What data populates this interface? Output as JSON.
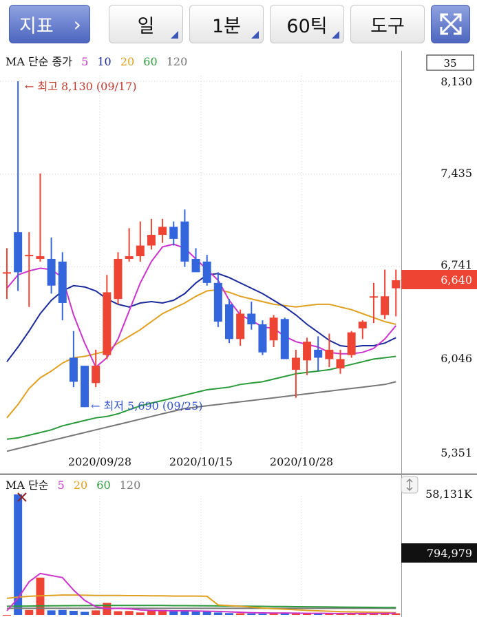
{
  "toolbar": {
    "indicator_label": "지표",
    "chevron": "›",
    "period_label": "일",
    "interval_label": "1분",
    "tick_label": "60틱",
    "tools_label": "도구",
    "fullscreen_icon": "expand-arrows-icon"
  },
  "price_panel": {
    "legend_prefix": "MA 단순 종가",
    "legend_periods": [
      "5",
      "10",
      "20",
      "60",
      "120"
    ],
    "legend_colors": [
      "#cc33cc",
      "#1a2a9a",
      "#e0a020",
      "#2a9a3a",
      "#777777"
    ],
    "count_box": "35",
    "y_ticks": [
      "8,130",
      "7,435",
      "6,741",
      "6,046",
      "5,351"
    ],
    "current_price_label": "6,640",
    "high_annotation": "← 최고 8,130 (09/17)",
    "low_annotation": "← 최저 5,690 (09/25)",
    "x_ticks": [
      "2020/09/28",
      "2020/10/15",
      "2020/10/28"
    ],
    "up_color": "#ee4433",
    "down_color": "#3366dd"
  },
  "volume_panel": {
    "legend_prefix": "MA 단순",
    "legend_periods": [
      "5",
      "20",
      "60",
      "120"
    ],
    "legend_colors": [
      "#cc33cc",
      "#e0a020",
      "#2a9a3a",
      "#777777"
    ],
    "y_top_label": "58,131K",
    "current_volume_label": "794,979"
  },
  "chart_data": {
    "type": "candlestick",
    "y_range": [
      5351,
      8130
    ],
    "high": 8130,
    "low": 5690,
    "last_price": 6640,
    "candles": [
      {
        "o": 6700,
        "h": 6880,
        "l": 6500,
        "c": 6700
      },
      {
        "o": 7000,
        "h": 8130,
        "l": 6560,
        "c": 6700
      },
      {
        "o": 6820,
        "h": 7000,
        "l": 6440,
        "c": 6830
      },
      {
        "o": 6800,
        "h": 7440,
        "l": 6780,
        "c": 6820
      },
      {
        "o": 6800,
        "h": 6960,
        "l": 6540,
        "c": 6600
      },
      {
        "o": 6780,
        "h": 6850,
        "l": 6340,
        "c": 6470
      },
      {
        "o": 6060,
        "h": 6260,
        "l": 5840,
        "c": 5880
      },
      {
        "o": 6000,
        "h": 6000,
        "l": 5690,
        "c": 5690
      },
      {
        "o": 5870,
        "h": 6120,
        "l": 5840,
        "c": 6000
      },
      {
        "o": 6080,
        "h": 6680,
        "l": 6050,
        "c": 6550
      },
      {
        "o": 6500,
        "h": 6850,
        "l": 6460,
        "c": 6800
      },
      {
        "o": 6800,
        "h": 7030,
        "l": 6780,
        "c": 6820
      },
      {
        "o": 6820,
        "h": 7080,
        "l": 6780,
        "c": 6900
      },
      {
        "o": 6900,
        "h": 7100,
        "l": 6870,
        "c": 6980
      },
      {
        "o": 6980,
        "h": 7100,
        "l": 6920,
        "c": 7040
      },
      {
        "o": 7040,
        "h": 7080,
        "l": 6900,
        "c": 6950
      },
      {
        "o": 7080,
        "h": 7170,
        "l": 6740,
        "c": 6780
      },
      {
        "o": 6800,
        "h": 6880,
        "l": 6720,
        "c": 6700
      },
      {
        "o": 6780,
        "h": 6830,
        "l": 6600,
        "c": 6620
      },
      {
        "o": 6620,
        "h": 6700,
        "l": 6290,
        "c": 6330
      },
      {
        "o": 6460,
        "h": 6500,
        "l": 6170,
        "c": 6200
      },
      {
        "o": 6200,
        "h": 6420,
        "l": 6150,
        "c": 6390
      },
      {
        "o": 6390,
        "h": 6480,
        "l": 6270,
        "c": 6310
      },
      {
        "o": 6310,
        "h": 6340,
        "l": 6080,
        "c": 6100
      },
      {
        "o": 6190,
        "h": 6380,
        "l": 6140,
        "c": 6360
      },
      {
        "o": 6350,
        "h": 6360,
        "l": 6060,
        "c": 6050
      },
      {
        "o": 5970,
        "h": 6120,
        "l": 5760,
        "c": 6060
      },
      {
        "o": 6040,
        "h": 6210,
        "l": 5930,
        "c": 6180
      },
      {
        "o": 6120,
        "h": 6220,
        "l": 5960,
        "c": 6060
      },
      {
        "o": 6050,
        "h": 6240,
        "l": 5990,
        "c": 6120
      },
      {
        "o": 5980,
        "h": 6120,
        "l": 5940,
        "c": 6050
      },
      {
        "o": 6080,
        "h": 6260,
        "l": 6060,
        "c": 6250
      },
      {
        "o": 6280,
        "h": 6340,
        "l": 6200,
        "c": 6330
      },
      {
        "o": 6520,
        "h": 6620,
        "l": 6320,
        "c": 6520
      },
      {
        "o": 6380,
        "h": 6720,
        "l": 6350,
        "c": 6520
      },
      {
        "o": 6580,
        "h": 6720,
        "l": 6370,
        "c": 6640
      }
    ],
    "ma_lines": [
      {
        "name": "5",
        "values": [
          6580,
          6680,
          6710,
          6730,
          6720,
          6660,
          6380,
          6170,
          5990,
          6060,
          6200,
          6410,
          6620,
          6780,
          6890,
          6910,
          6880,
          6800,
          6720,
          6640,
          6490,
          6380,
          6340,
          6290,
          6280,
          6220,
          6180,
          6160,
          6140,
          6100,
          6090,
          6090,
          6100,
          6130,
          6200,
          6300
        ]
      },
      {
        "name": "10",
        "values": [
          6030,
          6140,
          6260,
          6390,
          6490,
          6560,
          6600,
          6590,
          6560,
          6500,
          6460,
          6440,
          6470,
          6480,
          6470,
          6490,
          6540,
          6620,
          6680,
          6690,
          6660,
          6620,
          6580,
          6540,
          6490,
          6440,
          6380,
          6310,
          6250,
          6190,
          6150,
          6140,
          6150,
          6150,
          6170,
          6210
        ]
      },
      {
        "name": "20",
        "values": [
          5610,
          5710,
          5830,
          5910,
          5960,
          6020,
          6060,
          6070,
          6090,
          6110,
          6170,
          6220,
          6270,
          6330,
          6390,
          6430,
          6470,
          6520,
          6560,
          6570,
          6550,
          6520,
          6500,
          6480,
          6460,
          6450,
          6440,
          6450,
          6460,
          6460,
          6440,
          6420,
          6390,
          6360,
          6330,
          6310
        ]
      },
      {
        "name": "60",
        "values": [
          5450,
          5460,
          5480,
          5500,
          5520,
          5550,
          5570,
          5590,
          5610,
          5620,
          5640,
          5670,
          5700,
          5720,
          5740,
          5760,
          5780,
          5800,
          5820,
          5830,
          5840,
          5860,
          5870,
          5880,
          5900,
          5920,
          5940,
          5950,
          5960,
          5970,
          5990,
          6010,
          6030,
          6050,
          6060,
          6070
        ]
      },
      {
        "name": "120",
        "values": [
          5360,
          5380,
          5400,
          5420,
          5440,
          5460,
          5480,
          5500,
          5520,
          5540,
          5560,
          5580,
          5600,
          5620,
          5640,
          5660,
          5680,
          5690,
          5700,
          5710,
          5720,
          5730,
          5740,
          5750,
          5760,
          5770,
          5780,
          5790,
          5800,
          5810,
          5820,
          5830,
          5840,
          5850,
          5860,
          5880
        ]
      }
    ],
    "volume": {
      "y_max": 58131,
      "unit": "K",
      "values": [
        0,
        58131,
        2400,
        18000,
        2200,
        2400,
        2000,
        1500,
        2200,
        5800,
        1800,
        1900,
        1200,
        2200,
        2400,
        2000,
        2300,
        1600,
        1500,
        1200,
        900,
        800,
        700,
        600,
        700,
        1200,
        900,
        900,
        700,
        700,
        600,
        700,
        800,
        1100,
        700,
        795
      ],
      "ma_lines": [
        {
          "name": "5",
          "values": [
            2000,
            8000,
            16000,
            20000,
            19000,
            18000,
            12000,
            7000,
            4000,
            3000,
            3200,
            3000,
            2400,
            2200,
            2100,
            2000,
            2000,
            1900,
            1800,
            1700,
            1500,
            1300,
            1100,
            1000,
            900,
            900,
            850,
            800,
            800,
            750,
            700,
            700,
            720,
            760,
            800,
            820
          ]
        },
        {
          "name": "20",
          "values": [
            8000,
            8600,
            9000,
            9200,
            9400,
            9600,
            9600,
            9500,
            9400,
            9400,
            9400,
            9300,
            9300,
            9200,
            9200,
            9100,
            9100,
            9100,
            9000,
            4800,
            4500,
            4200,
            3800,
            3300,
            3000,
            2800,
            2500,
            2200,
            2000,
            1800,
            1600,
            1500,
            1400,
            1300,
            1200,
            1100
          ]
        },
        {
          "name": "60",
          "values": [
            4200,
            4250,
            4300,
            4350,
            4400,
            4450,
            4500,
            4500,
            4550,
            4550,
            4550,
            4600,
            4600,
            4600,
            4550,
            4500,
            4500,
            4450,
            4400,
            4350,
            4300,
            4250,
            4200,
            4150,
            4100,
            4050,
            4000,
            3950,
            3900,
            3850,
            3800,
            3750,
            3700,
            3650,
            3600,
            3550
          ]
        },
        {
          "name": "120",
          "values": [
            3200,
            3200,
            3200,
            3200,
            3200,
            3200,
            3200,
            3200,
            3200,
            3200,
            3200,
            3200,
            3200,
            3200,
            3200,
            3200,
            3200,
            3200,
            3200,
            3200,
            3200,
            3200,
            3200,
            3200,
            3200,
            3200,
            3200,
            3200,
            3200,
            3200,
            3200,
            3200,
            3200,
            3200,
            3200,
            3200
          ]
        }
      ]
    }
  }
}
